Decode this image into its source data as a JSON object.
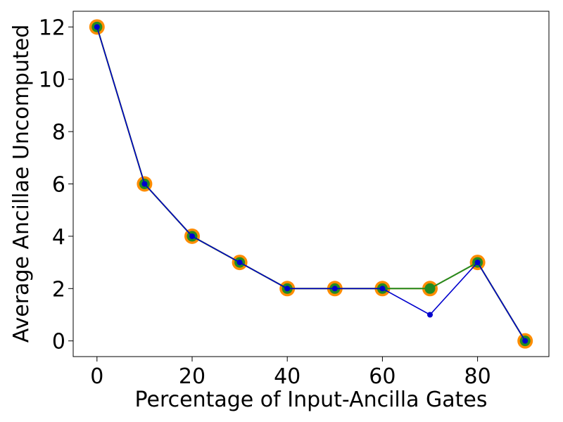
{
  "chart_data": {
    "type": "line",
    "title": "",
    "xlabel": "Percentage of Input-Ancilla Gates",
    "ylabel": "Average Ancillae Uncomputed",
    "xlim": [
      -5,
      95
    ],
    "ylim": [
      -0.6,
      12.6
    ],
    "xticks": [
      0,
      20,
      40,
      60,
      80
    ],
    "yticks": [
      0,
      2,
      4,
      6,
      8,
      10,
      12
    ],
    "grid": false,
    "legend": "none",
    "x": [
      0,
      10,
      20,
      30,
      40,
      50,
      60,
      70,
      80,
      90
    ],
    "series": [
      {
        "color": "#ff8c00",
        "marker": "large-circle",
        "values": [
          12,
          6,
          4,
          3,
          2,
          2,
          2,
          2,
          3,
          0
        ]
      },
      {
        "color": "#228b22",
        "marker": "medium-circle",
        "values": [
          12,
          6,
          4,
          3,
          2,
          2,
          2,
          2,
          3,
          0
        ]
      },
      {
        "color": "#0000cd",
        "marker": "small-circle",
        "values": [
          12,
          6,
          4,
          3,
          2,
          2,
          2,
          1,
          3,
          0
        ]
      }
    ]
  }
}
